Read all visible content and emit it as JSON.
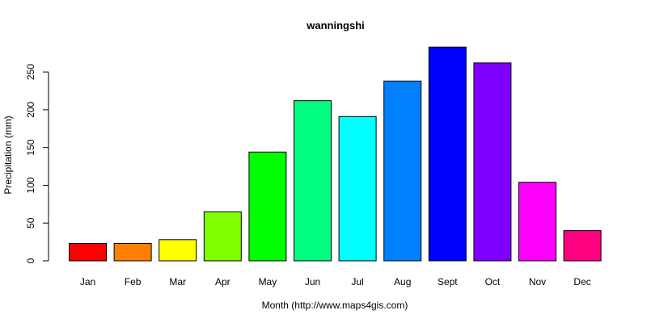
{
  "chart_data": {
    "type": "bar",
    "title": "wanningshi",
    "xlabel": "Month (http://www.maps4gis.com)",
    "ylabel": "Precipitation (mm)",
    "categories": [
      "Jan",
      "Feb",
      "Mar",
      "Apr",
      "May",
      "Jun",
      "Jul",
      "Aug",
      "Sept",
      "Oct",
      "Nov",
      "Dec"
    ],
    "values": [
      23,
      23,
      28,
      65,
      144,
      212,
      191,
      238,
      283,
      262,
      104,
      40
    ],
    "colors": [
      "#FF0000",
      "#FF8000",
      "#FFFF00",
      "#80FF00",
      "#00FF00",
      "#00FF80",
      "#00FFFF",
      "#0080FF",
      "#0000FF",
      "#8000FF",
      "#FF00FF",
      "#FF0080"
    ],
    "yticks": [
      0,
      50,
      100,
      150,
      200,
      250
    ],
    "ylim": [
      0,
      283
    ],
    "grid": false,
    "legend": "none"
  }
}
